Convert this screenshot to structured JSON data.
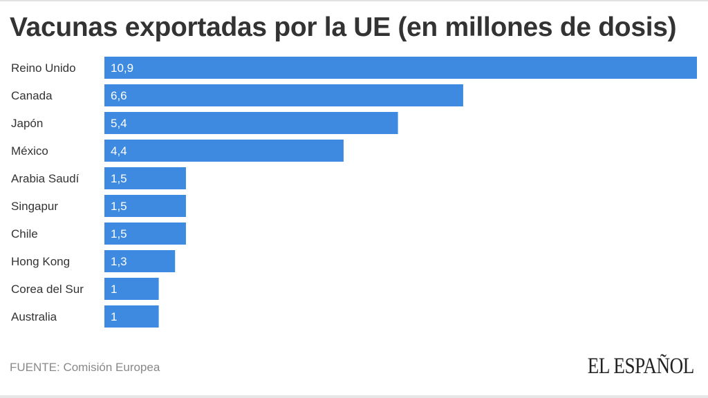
{
  "chart_data": {
    "type": "bar",
    "orientation": "horizontal",
    "title": "Vacunas exportadas por la UE (en millones de dosis)",
    "categories": [
      "Reino Unido",
      "Canada",
      "Japón",
      "México",
      "Arabia Saudí",
      "Singapur",
      "Chile",
      "Hong Kong",
      "Corea del Sur",
      "Australia"
    ],
    "values": [
      10.9,
      6.6,
      5.4,
      4.4,
      1.5,
      1.5,
      1.5,
      1.3,
      1,
      1
    ],
    "data_labels": [
      "10,9",
      "6,6",
      "5,4",
      "4,4",
      "1,5",
      "1,5",
      "1,5",
      "1,3",
      "1",
      "1"
    ],
    "xlim": [
      0,
      10.9
    ],
    "grid": false,
    "bar_color": "#3d8ae0"
  },
  "footer": {
    "source": "FUENTE: Comisión Europea",
    "logo": "EL ESPAÑOL"
  }
}
